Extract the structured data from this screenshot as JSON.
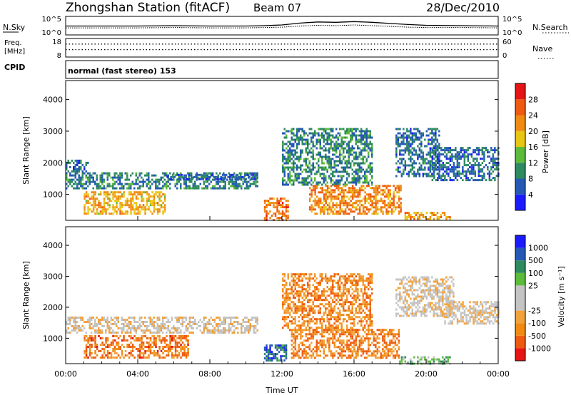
{
  "header": {
    "station": "Zhongshan Station (fitACF)",
    "beam": "Beam 07",
    "date": "28/Dec/2010"
  },
  "colors": {
    "power_scale": [
      "#1b1bff",
      "#2559b5",
      "#2e8a60",
      "#5dbb3c",
      "#e8c613",
      "#f08a12",
      "#ee5a10",
      "#e61414"
    ],
    "velocity_scale": [
      "#e61414",
      "#ee5a10",
      "#f08a12",
      "#f2a23c",
      "#c4c4c4",
      "#c4c4c4",
      "#5dbb3c",
      "#2e8a60",
      "#2559b5",
      "#1b1bff"
    ]
  },
  "chart_data": [
    {
      "type": "line",
      "panel": "n-sky-n-search",
      "left_label": "N.Sky",
      "right_label": "N.Search",
      "left_ticks": [
        "10^5",
        "10^0"
      ],
      "right_ticks": [
        "10^5",
        "10^0"
      ],
      "ylim": [
        0,
        5
      ],
      "x": [
        "00:00",
        "02:00",
        "04:00",
        "06:00",
        "08:00",
        "10:00",
        "11:00",
        "12:00",
        "13:00",
        "14:00",
        "15:00",
        "16:00",
        "17:00",
        "18:00",
        "19:00",
        "20:00",
        "22:00",
        "24:00"
      ],
      "series": [
        {
          "values": [
            2.4,
            2.4,
            2.4,
            2.5,
            2.4,
            2.4,
            2.5,
            2.7,
            3.2,
            3.5,
            3.4,
            3.6,
            3.4,
            3.1,
            2.8,
            2.6,
            2.5,
            2.4
          ]
        },
        {
          "values": [
            1.9,
            1.9,
            1.9,
            2.0,
            1.9,
            1.9,
            2.0,
            2.1,
            2.4,
            2.6,
            2.5,
            2.7,
            2.5,
            2.3,
            2.1,
            2.0,
            2.0,
            1.9
          ]
        }
      ]
    },
    {
      "type": "scatter",
      "panel": "frequency-nave",
      "left_label": "Freq.",
      "left_unit": "[MHz]",
      "right_label": "Nave",
      "left_ticks": [
        "18",
        "8"
      ],
      "right_ticks": [
        "60",
        "0"
      ],
      "ylim": [
        8,
        18
      ],
      "x": [
        "00:00",
        "03:00",
        "06:00",
        "09:00",
        "12:00",
        "15:00",
        "18:00",
        "21:00",
        "24:00"
      ],
      "series": [
        {
          "values": [
            12,
            12,
            12,
            12,
            12,
            12,
            12,
            12,
            12
          ]
        },
        {
          "values": [
            15,
            15,
            15,
            15,
            15,
            15,
            15,
            15,
            15
          ]
        }
      ]
    },
    {
      "type": "text",
      "panel": "cpid",
      "label": "CPID",
      "value": "normal (fast stereo) 153"
    },
    {
      "type": "heatmap",
      "panel": "power",
      "ylabel": "Slant Range [km]",
      "y_ticks": [
        "1000",
        "2000",
        "3000",
        "4000"
      ],
      "ylim": [
        180,
        4600
      ],
      "colorbar_label": "Power [dB]",
      "colorbar_ticks": [
        "4",
        "8",
        "12",
        "16",
        "20",
        "24",
        "28"
      ],
      "colorbar_range": [
        0,
        32
      ],
      "regions": [
        {
          "t0": 0.0,
          "t1": 10.6,
          "r0": 1200,
          "r1": 1700,
          "level": 0.28
        },
        {
          "t0": 1.0,
          "t1": 5.5,
          "r0": 400,
          "r1": 1100,
          "level": 0.62
        },
        {
          "t0": 0.0,
          "t1": 1.2,
          "r0": 1750,
          "r1": 2100,
          "level": 0.22
        },
        {
          "t0": 5.5,
          "t1": 10.6,
          "r0": 1450,
          "r1": 1650,
          "level": 0.2
        },
        {
          "t0": 11.0,
          "t1": 12.3,
          "r0": 200,
          "r1": 900,
          "level": 0.75
        },
        {
          "t0": 12.0,
          "t1": 17.0,
          "r0": 1300,
          "r1": 3100,
          "level": 0.3
        },
        {
          "t0": 13.5,
          "t1": 18.6,
          "r0": 400,
          "r1": 1300,
          "level": 0.72
        },
        {
          "t0": 18.8,
          "t1": 21.3,
          "r0": 200,
          "r1": 450,
          "level": 0.66
        },
        {
          "t0": 18.3,
          "t1": 20.7,
          "r0": 1600,
          "r1": 3100,
          "level": 0.24
        },
        {
          "t0": 20.3,
          "t1": 24.0,
          "r0": 1450,
          "r1": 2500,
          "level": 0.22
        }
      ]
    },
    {
      "type": "heatmap",
      "panel": "velocity",
      "ylabel": "Slant Range [km]",
      "y_ticks": [
        "1000",
        "2000",
        "3000",
        "4000"
      ],
      "ylim": [
        180,
        4600
      ],
      "xlabel": "Time UT",
      "x_ticks": [
        "00:00",
        "04:00",
        "08:00",
        "12:00",
        "16:00",
        "20:00",
        "00:00"
      ],
      "colorbar_label": "Velocity [m s⁻¹]",
      "colorbar_ticks": [
        "-1000",
        "-500",
        "-100",
        "-25",
        "25",
        "100",
        "500",
        "1000"
      ],
      "regions": [
        {
          "t0": 0.0,
          "t1": 10.6,
          "r0": 1200,
          "r1": 1700,
          "level": 0.45
        },
        {
          "t0": 1.0,
          "t1": 6.8,
          "r0": 400,
          "r1": 1100,
          "level": 0.22
        },
        {
          "t0": 11.0,
          "t1": 12.2,
          "r0": 250,
          "r1": 800,
          "level": 0.82
        },
        {
          "t0": 12.0,
          "t1": 17.0,
          "r0": 1300,
          "r1": 3100,
          "level": 0.26
        },
        {
          "t0": 12.5,
          "t1": 18.5,
          "r0": 400,
          "r1": 1300,
          "level": 0.24
        },
        {
          "t0": 18.5,
          "t1": 21.3,
          "r0": 180,
          "r1": 420,
          "level": 0.62
        },
        {
          "t0": 18.3,
          "t1": 21.5,
          "r0": 1700,
          "r1": 3000,
          "level": 0.45
        },
        {
          "t0": 21.0,
          "t1": 24.0,
          "r0": 1450,
          "r1": 2200,
          "level": 0.45
        }
      ]
    }
  ]
}
